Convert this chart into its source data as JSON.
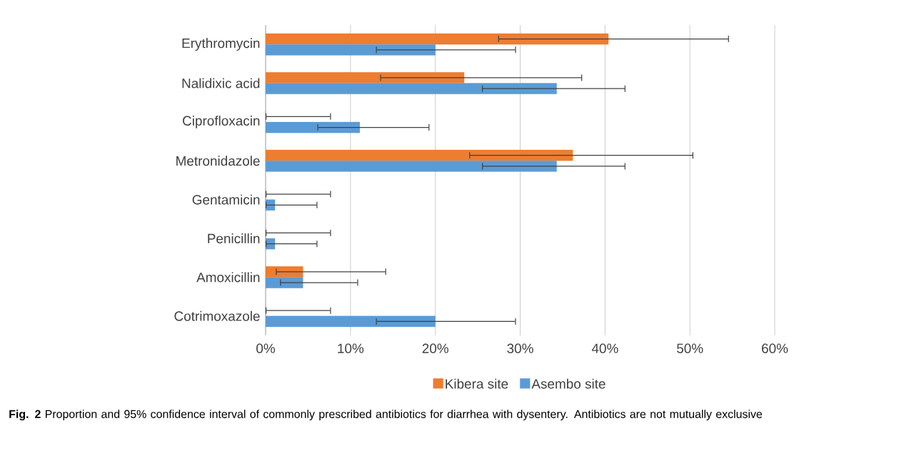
{
  "chart_data": {
    "type": "bar",
    "orientation": "horizontal",
    "categories": [
      "Erythromycin",
      "Nalidixic acid",
      "Ciprofloxacin",
      "Metronidazole",
      "Gentamicin",
      "Penicillin",
      "Amoxicillin",
      "Cotrimoxazole"
    ],
    "series": [
      {
        "name": "Kibera site",
        "color": "#ed7d31",
        "values": [
          40.4,
          23.4,
          0,
          36.2,
          0,
          0,
          4.4,
          0
        ],
        "errors": [
          [
            27.4,
            54.6
          ],
          [
            13.5,
            37.3
          ],
          [
            0,
            7.7
          ],
          [
            24.0,
            50.4
          ],
          [
            0,
            7.7
          ],
          [
            0,
            7.7
          ],
          [
            1.2,
            14.2
          ],
          [
            0,
            7.7
          ]
        ]
      },
      {
        "name": "Asembo site",
        "color": "#5b9bd5",
        "values": [
          20.0,
          34.3,
          11.1,
          34.3,
          1.1,
          1.1,
          4.4,
          20.0
        ],
        "errors": [
          [
            13.0,
            29.5
          ],
          [
            25.5,
            42.4
          ],
          [
            6.1,
            19.3
          ],
          [
            25.5,
            42.4
          ],
          [
            0,
            6.1
          ],
          [
            0,
            6.1
          ],
          [
            1.7,
            10.9
          ],
          [
            13.0,
            29.5
          ]
        ]
      }
    ],
    "xlim": [
      0,
      60
    ],
    "xticks": [
      {
        "value": 0,
        "label": "0%"
      },
      {
        "value": 10,
        "label": "10%"
      },
      {
        "value": 20,
        "label": "20%"
      },
      {
        "value": 30,
        "label": "30%"
      },
      {
        "value": 40,
        "label": "40%"
      },
      {
        "value": 50,
        "label": "50%"
      },
      {
        "value": 60,
        "label": "60%"
      }
    ],
    "grid": "x",
    "legend": "bottom",
    "annotations": [
      "**Fig. 2** Proportion and 95% confidence interval of commonly prescribed antibiotics for diarrhea with dysentery. Antibiotics are not mutually exclusive"
    ]
  }
}
